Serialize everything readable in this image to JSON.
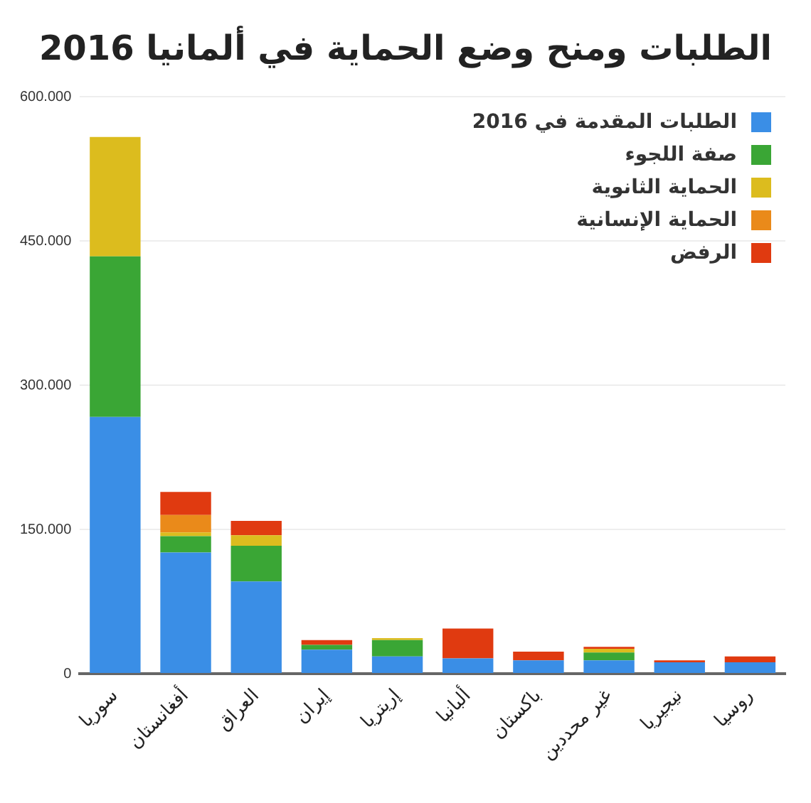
{
  "chart_data": {
    "type": "bar",
    "title": "الطلبات ومنح وضع الحماية في ألمانيا 2016",
    "stacked": true,
    "categories": [
      "سوريا",
      "أفغانستان",
      "العراق",
      "إيران",
      "إريتريا",
      "ألبانيا",
      "باكستان",
      "غير محددين",
      "نيجيريا",
      "روسيا"
    ],
    "series": [
      {
        "name": "الطلبات المقدمة في 2016",
        "color": "#3a8ee6",
        "values": [
          267000,
          126000,
          96000,
          25000,
          18000,
          16000,
          14000,
          14000,
          12000,
          12000
        ]
      },
      {
        "name": "صفة اللجوء",
        "color": "#3aa635",
        "values": [
          167000,
          17000,
          37000,
          5000,
          17000,
          0,
          0,
          8000,
          0,
          0
        ]
      },
      {
        "name": "الحماية الثانوية",
        "color": "#dcbc1e",
        "values": [
          124000,
          4000,
          11000,
          0,
          2000,
          0,
          0,
          4000,
          0,
          0
        ]
      },
      {
        "name": "الحماية الإنسانية",
        "color": "#ea8a1a",
        "values": [
          0,
          18000,
          0,
          0,
          0,
          0,
          0,
          0,
          0,
          0
        ]
      },
      {
        "name": "الرفض",
        "color": "#e03a10",
        "values": [
          0,
          24000,
          15000,
          5000,
          0,
          31000,
          9000,
          2000,
          2000,
          6000
        ]
      }
    ],
    "ylim": [
      0,
      600000
    ],
    "yticks": [
      {
        "value": 0,
        "label": "0"
      },
      {
        "value": 150000,
        "label": "150.000"
      },
      {
        "value": 300000,
        "label": "300.000"
      },
      {
        "value": 450000,
        "label": "450.000"
      },
      {
        "value": 600000,
        "label": "600.000"
      }
    ],
    "grid": "y",
    "legend": "top right"
  }
}
